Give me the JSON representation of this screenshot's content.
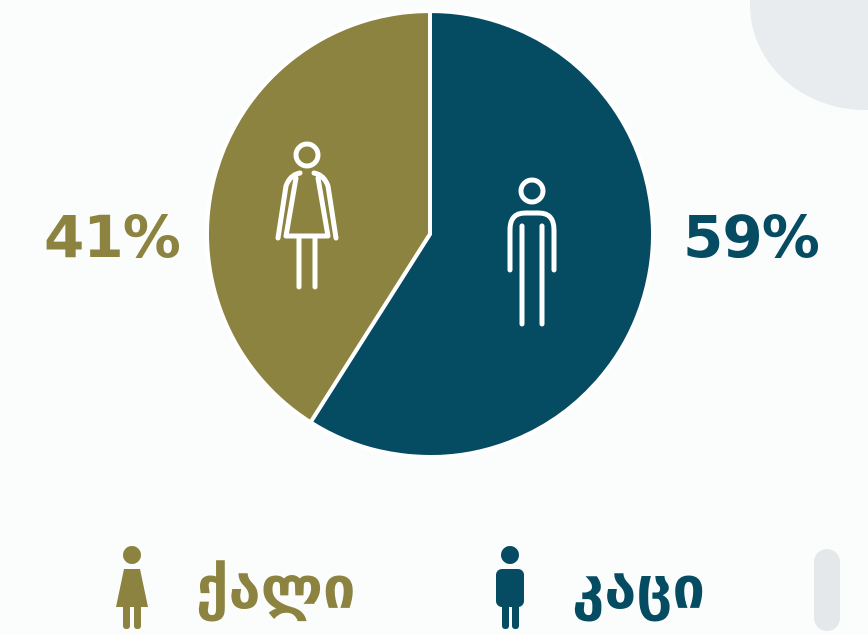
{
  "chart_data": {
    "type": "pie",
    "title": "",
    "slices": [
      {
        "label": "ქალი",
        "value": 41,
        "display": "41%",
        "color": "#8b833f",
        "icon": "female-icon"
      },
      {
        "label": "კაცი",
        "value": 59,
        "display": "59%",
        "color": "#054b62",
        "icon": "male-icon"
      }
    ],
    "legend_position": "bottom"
  },
  "legend": {
    "female_label": "ქალი",
    "male_label": "კაცი"
  },
  "labels": {
    "female_pct": "41%",
    "male_pct": "59%"
  },
  "colors": {
    "female": "#8b833f",
    "male": "#054b62",
    "background": "#fbfcfc"
  }
}
